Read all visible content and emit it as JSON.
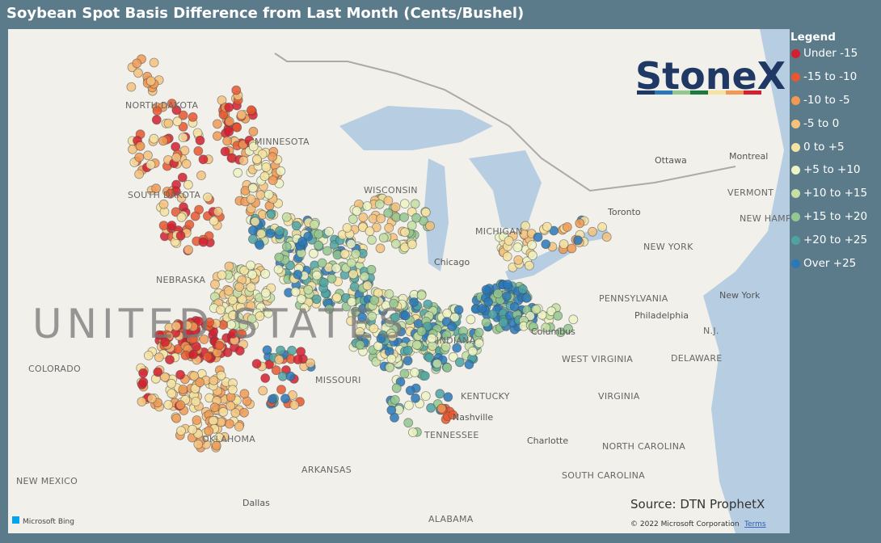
{
  "header": {
    "title": "Soybean Spot Basis Difference from Last Month (Cents/Bushel)"
  },
  "legend": {
    "title": "Legend",
    "items": [
      {
        "label": "Under -15",
        "color": "#d3202f"
      },
      {
        "label": "-15 to -10",
        "color": "#e8572f"
      },
      {
        "label": "-10 to -5",
        "color": "#f09a55"
      },
      {
        "label": "-5 to 0",
        "color": "#f5c27e"
      },
      {
        "label": "0 to +5",
        "color": "#f6e3a2"
      },
      {
        "label": "+5 to +10",
        "color": "#eef3c4"
      },
      {
        "label": "+10 to +15",
        "color": "#c6df a3"
      },
      {
        "label": "+15 to +20",
        "color": "#93c78f"
      },
      {
        "label": "+20 to +25",
        "color": "#4ea3a2"
      },
      {
        "label": "Over +25",
        "color": "#2a78b8"
      }
    ]
  },
  "map": {
    "labels": [
      "NORTH DAKOTA",
      "MINNESOTA",
      "SOUTH DAKOTA",
      "NEBRASKA",
      "UNITED STATES",
      "COLORADO",
      "MISSOURI",
      "KENTUCKY",
      "TENNESSEE",
      "OKLAHOMA",
      "ARKANSAS",
      "NEW MEXICO",
      "Dallas",
      "ALABAMA",
      "Nashville",
      "Chicago",
      "MICHIGAN",
      "WISCONSIN",
      "INDIANA",
      "Toronto",
      "Ottawa",
      "Montreal",
      "VERMONT",
      "NEW HAMPSHIRE",
      "NEW YORK",
      "PENNSYLVANIA",
      "New York",
      "Philadelphia",
      "Columbus",
      "WEST VIRGINIA",
      "VIRGINIA",
      "DELAWARE",
      "N.J.",
      "Charlotte",
      "NORTH CAROLINA",
      "SOUTH CAROLINA"
    ],
    "logo": "StoneX",
    "source": "Source: DTN ProphetX",
    "copyright": "© 2022 Microsoft Corporation",
    "terms": "Terms",
    "bing": "Microsoft Bing"
  }
}
